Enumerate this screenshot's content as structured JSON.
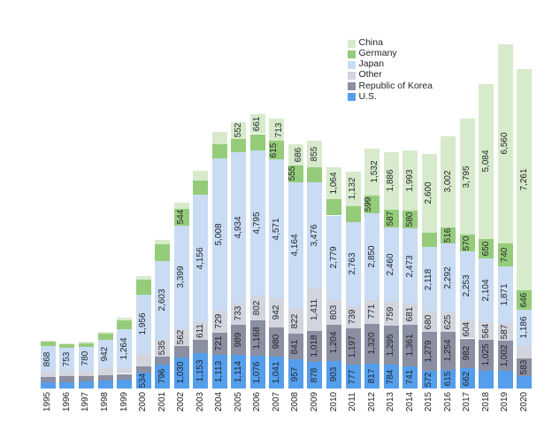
{
  "chart_data": {
    "type": "bar",
    "stacked": true,
    "title": "",
    "xlabel": "",
    "ylabel": "",
    "grid": false,
    "legend_position": "top-right",
    "categories": [
      1995,
      1996,
      1997,
      1998,
      1999,
      2000,
      2001,
      2002,
      2003,
      2004,
      2005,
      2006,
      2007,
      2008,
      2009,
      2010,
      2011,
      2012,
      2013,
      2014,
      2015,
      2016,
      2017,
      2018,
      2019,
      2020
    ],
    "series": [
      {
        "name": "U.S.",
        "color": "#559eec",
        "values": [
          210,
          215,
          235,
          260,
          300,
          534,
          796,
          1030,
          1153,
          1113,
          1114,
          1076,
          1041,
          957,
          878,
          903,
          777,
          817,
          784,
          741,
          572,
          615,
          662,
          585,
          570,
          420
        ],
        "labels": [
          null,
          null,
          null,
          null,
          null,
          "534",
          "796",
          "1,030",
          "1,153",
          "1,113",
          "1,114",
          "1,076",
          "1,041",
          "957",
          "878",
          "903",
          "777",
          "817",
          "784",
          "741",
          "572",
          "615",
          "662",
          null,
          null,
          null
        ]
      },
      {
        "name": "Republic of Korea",
        "color": "#8a8fa1",
        "values": [
          155,
          180,
          175,
          185,
          180,
          205,
          265,
          370,
          445,
          721,
          989,
          1168,
          980,
          841,
          1018,
          1204,
          1197,
          1320,
          1295,
          1361,
          1279,
          1254,
          982,
          1025,
          1002,
          583
        ],
        "labels": [
          null,
          null,
          null,
          null,
          null,
          null,
          null,
          null,
          null,
          "721",
          "989",
          "1,168",
          "980",
          "841",
          "1,018",
          "1,204",
          "1,197",
          "1,320",
          "1,295",
          "1,361",
          "1,279",
          "1,254",
          "982",
          "1,025",
          "1,002",
          "583"
        ]
      },
      {
        "name": "Other",
        "color": "#d2d5de",
        "values": [
          175,
          180,
          175,
          225,
          200,
          395,
          535,
          562,
          611,
          729,
          733,
          802,
          942,
          822,
          1411,
          803,
          739,
          771,
          759,
          681,
          680,
          625,
          604,
          564,
          587,
          400
        ],
        "labels": [
          null,
          null,
          null,
          null,
          null,
          null,
          "535",
          "562",
          "611",
          "729",
          "733",
          "802",
          "942",
          "822",
          "1,411",
          "803",
          "739",
          "771",
          "759",
          "681",
          "680",
          "625",
          "604",
          "564",
          "587",
          null
        ]
      },
      {
        "name": "Japan",
        "color": "#c9dcf3",
        "values": [
          868,
          753,
          780,
          942,
          1264,
          1956,
          2603,
          3399,
          4156,
          5008,
          4934,
          4795,
          4571,
          4164,
          3476,
          2779,
          2763,
          2850,
          2460,
          2473,
          2118,
          2292,
          2253,
          2104,
          1871,
          1186
        ],
        "labels": [
          "868",
          "753",
          "780",
          "942",
          "1,264",
          "1,956",
          "2,603",
          "3,399",
          "4,156",
          "5,008",
          "4,934",
          "4,795",
          "4,571",
          "4,164",
          "3,476",
          "2,779",
          "2,763",
          "2,850",
          "2,460",
          "2,473",
          "2,118",
          "2,292",
          "2,253",
          "2,104",
          "1,871",
          "1,186"
        ]
      },
      {
        "name": "Germany",
        "color": "#95cc7a",
        "values": [
          130,
          130,
          130,
          190,
          310,
          485,
          550,
          544,
          475,
          460,
          440,
          525,
          615,
          555,
          500,
          525,
          525,
          599,
          587,
          580,
          470,
          516,
          570,
          650,
          740,
          646
        ],
        "labels": [
          null,
          null,
          null,
          null,
          null,
          null,
          null,
          "544",
          null,
          null,
          null,
          null,
          "615",
          "555",
          null,
          null,
          null,
          "599",
          "587",
          "580",
          null,
          "516",
          "570",
          "650",
          "740",
          "646"
        ]
      },
      {
        "name": "China",
        "color": "#d7ebcc",
        "values": [
          25,
          35,
          50,
          50,
          80,
          110,
          145,
          195,
          315,
          395,
          552,
          661,
          713,
          686,
          855,
          1064,
          1132,
          1532,
          1886,
          1993,
          2600,
          3002,
          3795,
          5084,
          6560,
          7261
        ],
        "labels": [
          null,
          null,
          null,
          null,
          null,
          null,
          null,
          null,
          null,
          null,
          "552",
          "661",
          "713",
          "686",
          "855",
          "1,064",
          "1,132",
          "1,532",
          "1,886",
          "1,993",
          "2,600",
          "3,002",
          "3,795",
          "5,084",
          "6,560",
          "7,261"
        ]
      }
    ],
    "legend": [
      "China",
      "Germany",
      "Japan",
      "Other",
      "Republic of Korea",
      "U.S."
    ],
    "staggered_label_years": [
      2007,
      2008,
      2012
    ]
  }
}
